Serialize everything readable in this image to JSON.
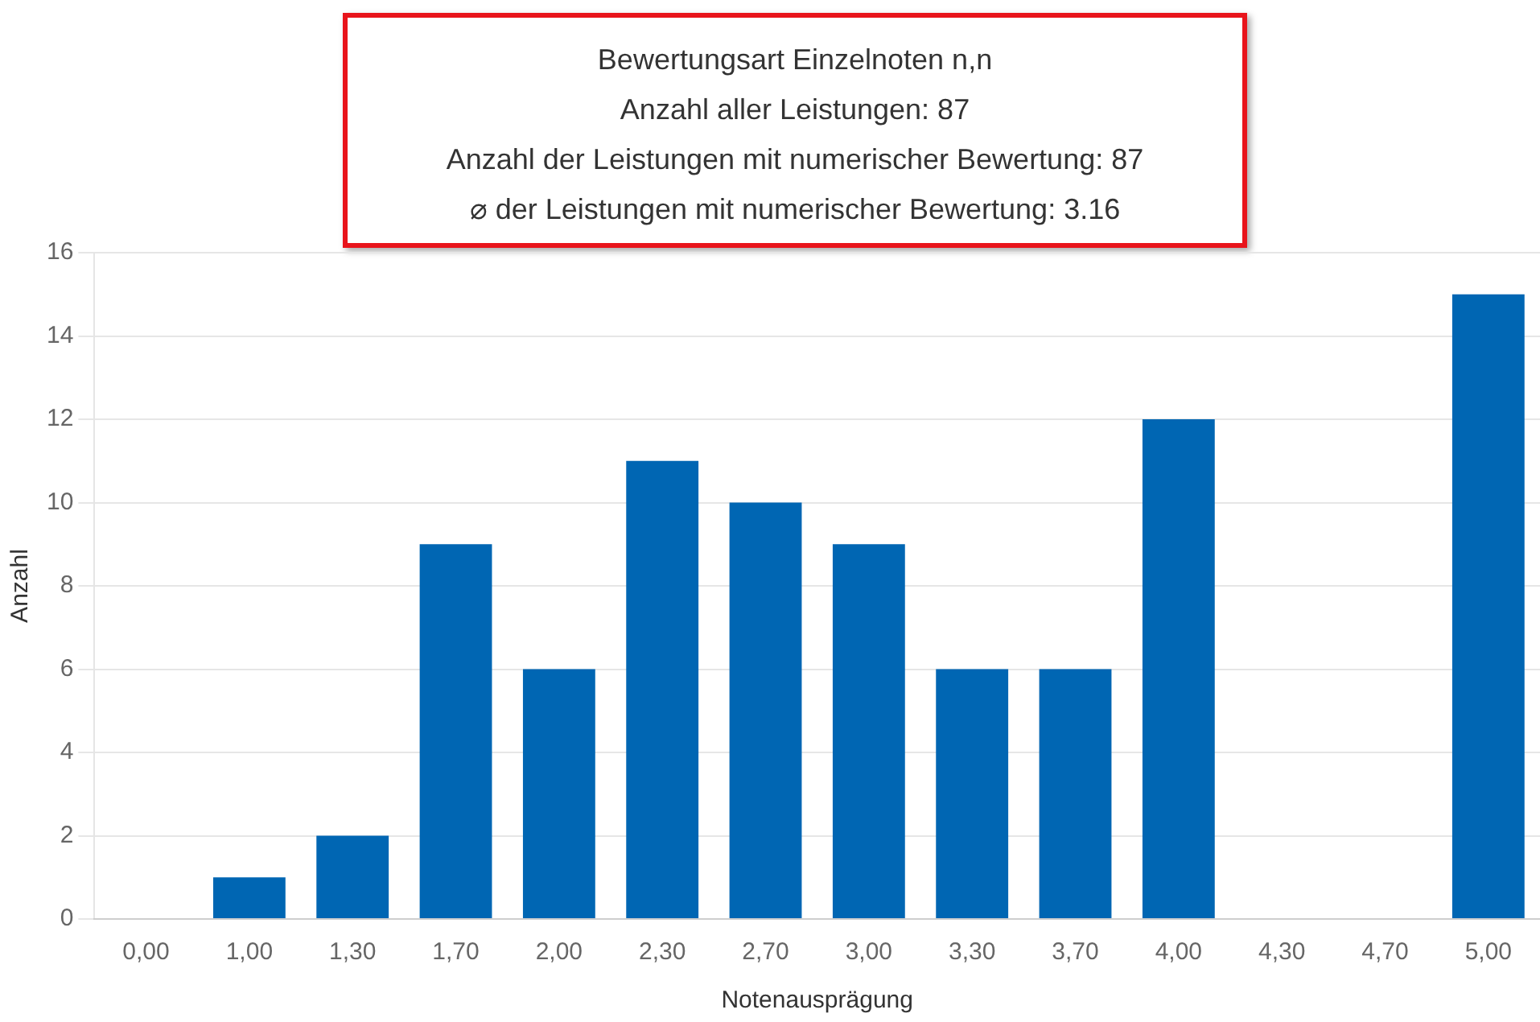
{
  "chart_data": {
    "type": "bar",
    "title": "Bewertungsart Einzelnoten n,n",
    "annotations": [
      "Anzahl aller Leistungen: 87",
      "Anzahl der Leistungen mit numerischer Bewertung: 87",
      "⌀ der Leistungen mit numerischer Bewertung: 3.16"
    ],
    "xlabel": "Notenausprägung",
    "ylabel": "Anzahl",
    "categories": [
      "0,00",
      "1,00",
      "1,30",
      "1,70",
      "2,00",
      "2,30",
      "2,70",
      "3,00",
      "3,30",
      "3,70",
      "4,00",
      "4,30",
      "4,70",
      "5,00"
    ],
    "values": [
      0,
      1,
      2,
      9,
      6,
      11,
      10,
      9,
      6,
      6,
      12,
      0,
      0,
      15
    ],
    "color": "#0066b3",
    "ylim": [
      0,
      16
    ],
    "yticks": [
      0,
      2,
      4,
      6,
      8,
      10,
      12,
      14,
      16
    ],
    "grid": "y",
    "legend": false
  }
}
